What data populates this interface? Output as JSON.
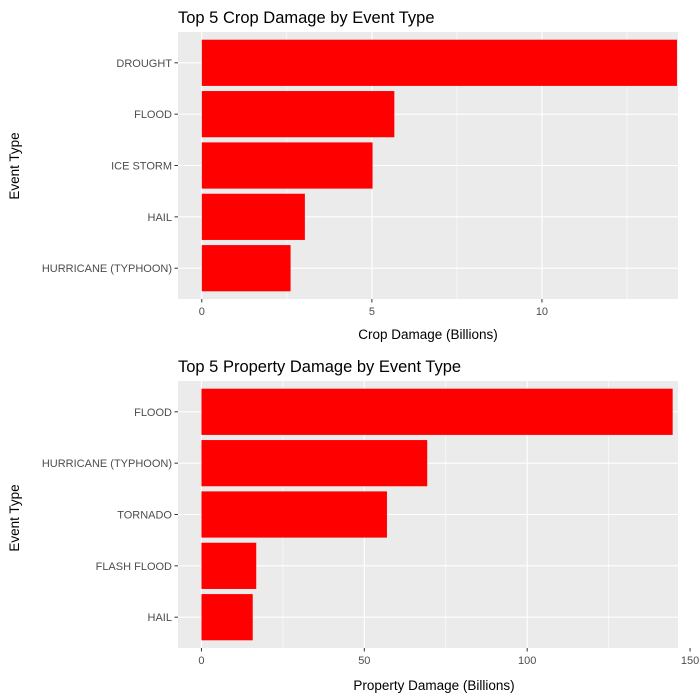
{
  "colors": {
    "panel_background": "#ebebeb",
    "gridline": "#ffffff",
    "bar_fill": "#ff0000",
    "tick_text": "#4d4d4d",
    "title_text": "#000000"
  },
  "chart_data": [
    {
      "type": "bar",
      "orientation": "horizontal",
      "title": "Top 5 Crop Damage by Event Type",
      "xlabel": "Crop Damage (Billions)",
      "ylabel": "Event Type",
      "categories": [
        "DROUGHT",
        "FLOOD",
        "ICE STORM",
        "HAIL",
        "HURRICANE (TYPHOON)"
      ],
      "values": [
        13.97,
        5.66,
        5.02,
        3.03,
        2.61
      ],
      "xlim": [
        -0.7,
        14.0
      ],
      "xticks": [
        0,
        5,
        10
      ],
      "grid": true,
      "bar_color": "#ff0000"
    },
    {
      "type": "bar",
      "orientation": "horizontal",
      "title": "Top 5 Property Damage by Event Type",
      "xlabel": "Property Damage (Billions)",
      "ylabel": "Event Type",
      "categories": [
        "FLOOD",
        "HURRICANE (TYPHOON)",
        "TORNADO",
        "FLASH FLOOD",
        "HAIL"
      ],
      "values": [
        144.66,
        69.31,
        56.95,
        16.82,
        15.74
      ],
      "xlim": [
        -7.2,
        146.3
      ],
      "xticks": [
        0,
        50,
        100,
        150
      ],
      "grid": true,
      "bar_color": "#ff0000"
    }
  ]
}
